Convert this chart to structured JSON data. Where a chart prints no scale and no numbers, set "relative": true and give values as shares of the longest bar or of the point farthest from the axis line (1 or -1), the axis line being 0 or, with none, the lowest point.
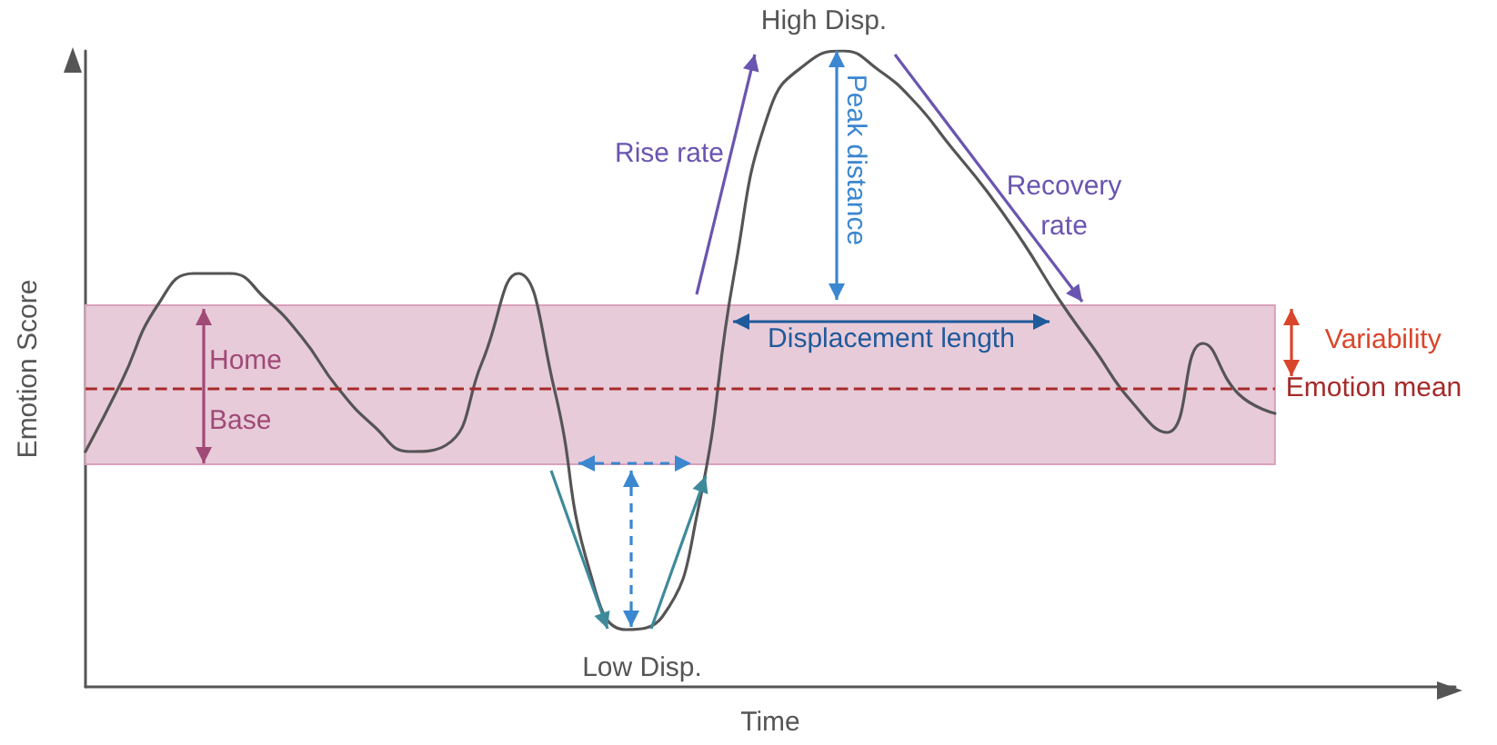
{
  "chart_data": {
    "type": "line",
    "relative": true,
    "xlabel": "Time",
    "ylabel": "Emotion Score",
    "grid": false,
    "marker": "none",
    "line_style": "solid",
    "categories": [
      null,
      null,
      null,
      null,
      null,
      null,
      null,
      null,
      null,
      null,
      null,
      null,
      null,
      null,
      null,
      null,
      null,
      null,
      null,
      null,
      null,
      null,
      null,
      null,
      null,
      null,
      null,
      null,
      null,
      null,
      null,
      null,
      null,
      null,
      null,
      null,
      null,
      null,
      null
    ],
    "series": [
      {
        "color": "#555555",
        "values": [
          0.37,
          0.48,
          0.6,
          0.65,
          0.65,
          0.61,
          0.55,
          0.47,
          0.41,
          0.37,
          0.38,
          0.51,
          0.65,
          0.47,
          0.18,
          0.09,
          0.11,
          0.28,
          0.65,
          0.91,
          0.98,
          1,
          0.97,
          0.92,
          0.85,
          0.78,
          0.7,
          0.61,
          0.53,
          0.45,
          0.4,
          0.54,
          0.46,
          0.43,
          null,
          null,
          null,
          null,
          null
        ]
      }
    ],
    "bands": [
      {
        "axis": "y",
        "from": 0.35,
        "to": 0.6,
        "label": "Variability",
        "color": "#e8cbd9"
      }
    ],
    "ref_lines": [
      {
        "axis": "y",
        "value": 0.47,
        "label": "Emotion mean",
        "color": "#a52a2a",
        "line_style": "dashed"
      }
    ],
    "annotations": [
      "High Disp.",
      "Rise rate",
      "Peak distance",
      "Recovery rate",
      "Displacement length",
      "Home",
      "Base",
      "Low Disp."
    ]
  }
}
